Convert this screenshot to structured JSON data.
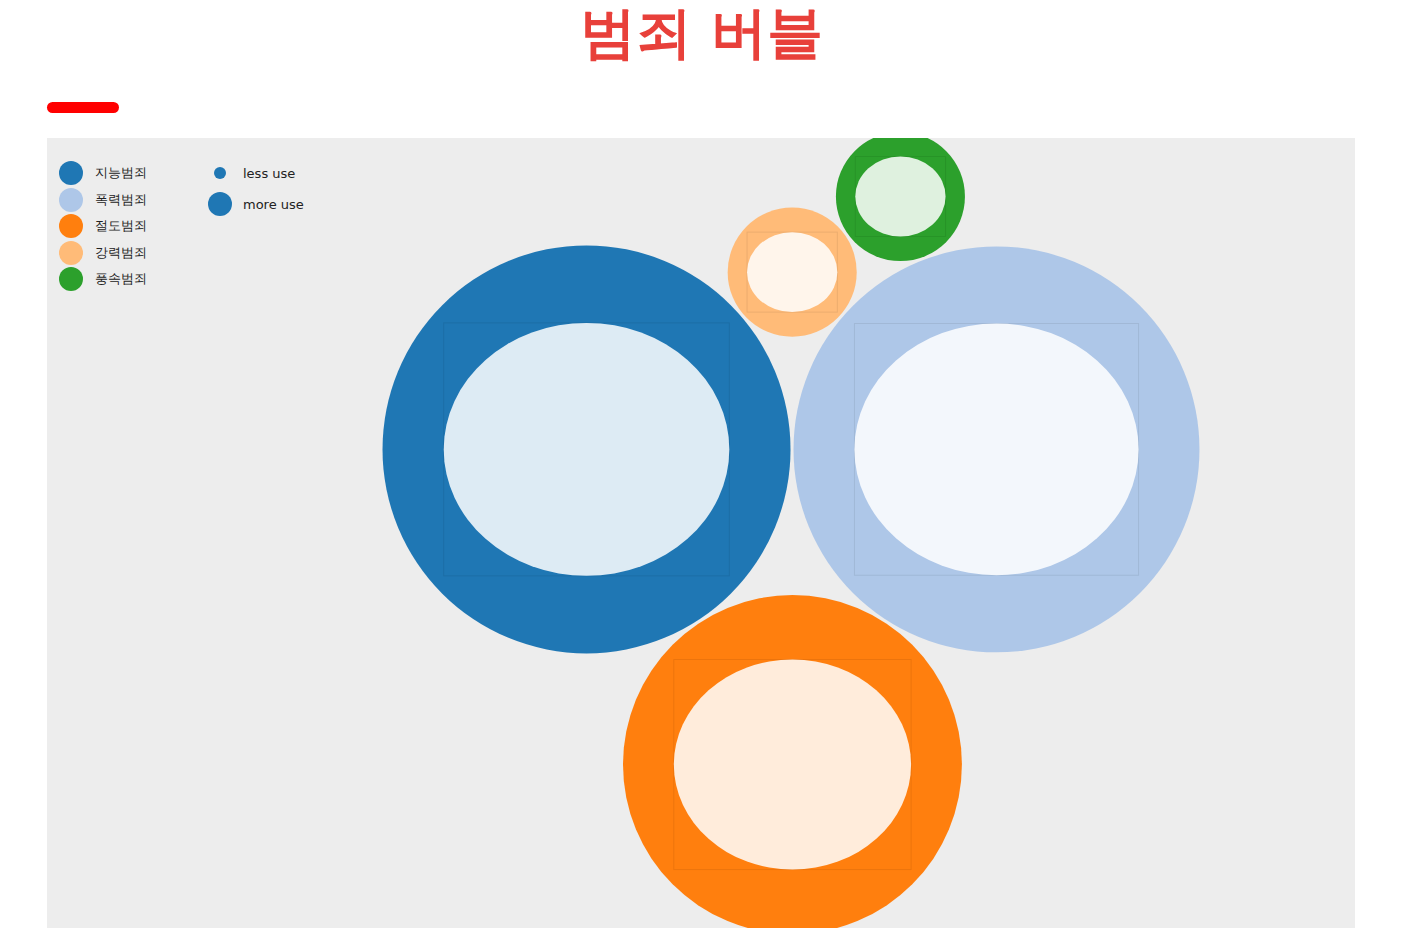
{
  "chart_data": {
    "type": "bubble",
    "title": "범죄 버블",
    "categories": [
      "지능범죄",
      "폭력범죄",
      "절도범죄",
      "강력범죄",
      "풍속범죄"
    ],
    "sizes": [
      100,
      99,
      69,
      10,
      10
    ],
    "colors": [
      "#1f77b4",
      "#aec7e8",
      "#ff7f0e",
      "#ffbb78",
      "#2ca02c"
    ],
    "legend": "top-left",
    "size_legend": [
      "less use",
      "more use"
    ],
    "tick_labels": false
  }
}
